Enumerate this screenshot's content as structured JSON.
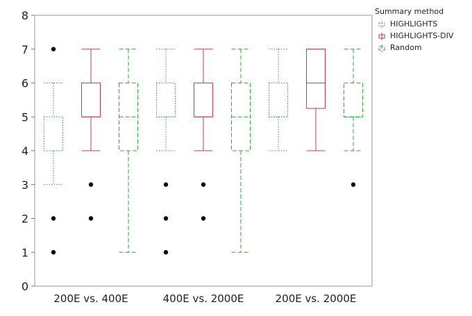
{
  "chart_data": {
    "type": "boxplot",
    "categories": [
      "200E vs. 400E",
      "400E vs. 2000E",
      "200E vs. 2000E"
    ],
    "ylim": [
      0,
      8
    ],
    "yticks": [
      0,
      1,
      2,
      3,
      4,
      5,
      6,
      7,
      8
    ],
    "legend": {
      "title": "Summary method",
      "placement": "top-right-outside"
    },
    "series": [
      {
        "name": "HIGHLIGHTS",
        "color": "#3a75c4",
        "line_style": "dotted",
        "boxes": [
          {
            "category": "200E vs. 400E",
            "whisker_low": 3,
            "q1": 4,
            "median": 4,
            "q3": 5,
            "whisker_high": 6,
            "outliers": [
              1,
              2,
              7
            ]
          },
          {
            "category": "400E vs. 2000E",
            "whisker_low": 4,
            "q1": 5,
            "median": 5,
            "q3": 6,
            "whisker_high": 7,
            "outliers": [
              1,
              2,
              3
            ]
          },
          {
            "category": "200E vs. 2000E",
            "whisker_low": 4,
            "q1": 5,
            "median": 5,
            "q3": 6,
            "whisker_high": 7,
            "outliers": []
          }
        ]
      },
      {
        "name": "HIGHLIGHTS-DIV",
        "color": "#b8424e",
        "line_style": "solid",
        "boxes": [
          {
            "category": "200E vs. 400E",
            "whisker_low": 4,
            "q1": 5,
            "median": 5,
            "q3": 6,
            "whisker_high": 7,
            "outliers": [
              2,
              3
            ]
          },
          {
            "category": "400E vs. 2000E",
            "whisker_low": 4,
            "q1": 5,
            "median": 5,
            "q3": 6,
            "whisker_high": 7,
            "outliers": [
              2,
              3
            ]
          },
          {
            "category": "200E vs. 2000E",
            "whisker_low": 4,
            "q1": 5.25,
            "median": 6,
            "q3": 7,
            "whisker_high": 7,
            "outliers": []
          }
        ]
      },
      {
        "name": "Random",
        "color": "#2ea836",
        "line_style": "dashed",
        "boxes": [
          {
            "category": "200E vs. 400E",
            "whisker_low": 1,
            "q1": 4,
            "median": 5,
            "q3": 6,
            "whisker_high": 7,
            "outliers": []
          },
          {
            "category": "400E vs. 2000E",
            "whisker_low": 1,
            "q1": 4,
            "median": 5,
            "q3": 6,
            "whisker_high": 7,
            "outliers": []
          },
          {
            "category": "200E vs. 2000E",
            "whisker_low": 4,
            "q1": 5,
            "median": 5,
            "q3": 6,
            "whisker_high": 7,
            "outliers": [
              3
            ]
          }
        ]
      }
    ]
  }
}
